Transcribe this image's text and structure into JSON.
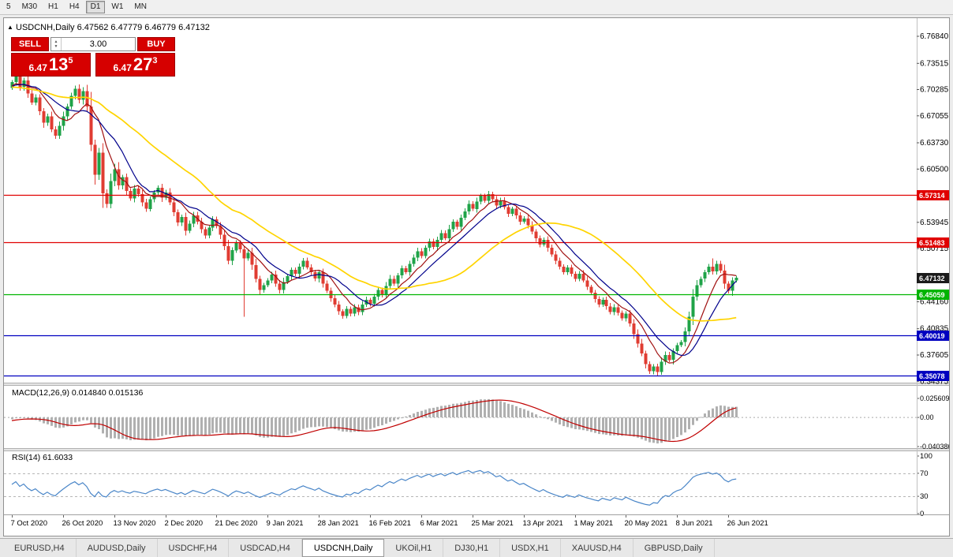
{
  "toolbar": {
    "timeframes": [
      "5",
      "M30",
      "H1",
      "H4",
      "D1",
      "W1",
      "MN"
    ],
    "active": "D1"
  },
  "header": {
    "symbol_line": "USDCNH,Daily 6.47562 6.47779 6.46779 6.47132"
  },
  "trade_panel": {
    "sell_label": "SELL",
    "buy_label": "BUY",
    "volume": "3.00",
    "sell_price": {
      "base": "6.47",
      "pips": "13",
      "sup": "5"
    },
    "buy_price": {
      "base": "6.47",
      "pips": "27",
      "sup": "3"
    },
    "panel_color": "#d60000"
  },
  "macd_panel": {
    "title": "MACD(12,26,9) 0.014840 0.015136",
    "axis_labels": [
      "0.025609",
      "0.00",
      "-0.040386"
    ]
  },
  "rsi_panel": {
    "title": "RSI(14) 61.6033",
    "axis_labels": [
      "100",
      "70",
      "30",
      "0"
    ],
    "levels": [
      70,
      30
    ]
  },
  "axis": {
    "price_ticks": [
      "6.76840",
      "6.73515",
      "6.70285",
      "6.67055",
      "6.63730",
      "6.60500",
      "6.57270",
      "6.53945",
      "6.50715",
      "6.47485",
      "6.44160",
      "6.40835",
      "6.37605",
      "6.34375"
    ],
    "current_price": 6.47132,
    "current_badge_color": "#1b1b1b"
  },
  "tabs": {
    "items": [
      "EURUSD,H4",
      "AUDUSD,Daily",
      "USDCHF,H4",
      "USDCAD,H4",
      "USDCNH,Daily",
      "UKOil,H1",
      "DJ30,H1",
      "USDX,H1",
      "XAUUSD,H4",
      "GBPUSD,Daily"
    ],
    "active_index": 4
  },
  "chart_data": {
    "type": "candlestick",
    "symbol": "USDCNH",
    "period": "Daily",
    "ohlc_display": {
      "open": 6.47562,
      "high": 6.47779,
      "low": 6.46779,
      "close": 6.47132
    },
    "axis_range": {
      "top": 6.783,
      "bottom": 6.344
    },
    "x_labels": [
      {
        "text": "7 Oct 2020",
        "index": 0
      },
      {
        "text": "26 Oct 2020",
        "index": 13
      },
      {
        "text": "13 Nov 2020",
        "index": 26
      },
      {
        "text": "2 Dec 2020",
        "index": 39
      },
      {
        "text": "21 Dec 2020",
        "index": 52
      },
      {
        "text": "9 Jan 2021",
        "index": 65
      },
      {
        "text": "28 Jan 2021",
        "index": 78
      },
      {
        "text": "16 Feb 2021",
        "index": 91
      },
      {
        "text": "6 Mar 2021",
        "index": 104
      },
      {
        "text": "25 Mar 2021",
        "index": 117
      },
      {
        "text": "13 Apr 2021",
        "index": 130
      },
      {
        "text": "1 May 2021",
        "index": 143
      },
      {
        "text": "20 May 2021",
        "index": 156
      },
      {
        "text": "8 Jun 2021",
        "index": 169
      },
      {
        "text": "26 Jun 2021",
        "index": 182
      }
    ],
    "history_closes": [
      6.758,
      6.752,
      6.746,
      6.75,
      6.742,
      6.736,
      6.74,
      6.732,
      6.726,
      6.73,
      6.722,
      6.716,
      6.72,
      6.712,
      6.706,
      6.71,
      6.702,
      6.708,
      6.7,
      6.694,
      6.698,
      6.704,
      6.696,
      6.69,
      6.686,
      6.692,
      6.684,
      6.69,
      6.696,
      6.702,
      6.708,
      6.714,
      6.706,
      6.7,
      6.712,
      6.718,
      6.71,
      6.704,
      6.698,
      6.705
    ],
    "closes": [
      6.712,
      6.7215,
      6.706,
      6.714,
      6.698,
      6.687,
      6.693,
      6.676,
      6.662,
      6.67,
      6.654,
      6.646,
      6.658,
      6.67,
      6.682,
      6.695,
      6.704,
      6.69,
      6.701,
      6.682,
      6.635,
      6.598,
      6.625,
      6.575,
      6.562,
      6.59,
      6.605,
      6.585,
      6.595,
      6.578,
      6.569,
      6.581,
      6.574,
      6.564,
      6.556,
      6.568,
      6.576,
      6.582,
      6.57,
      6.576,
      6.564,
      6.552,
      6.539,
      6.546,
      6.529,
      6.538,
      6.548,
      6.54,
      6.531,
      6.523,
      6.533,
      6.543,
      6.535,
      6.524,
      6.51,
      6.492,
      6.505,
      6.514,
      6.506,
      6.495,
      6.502,
      6.487,
      6.47,
      6.456,
      6.462,
      6.468,
      6.475,
      6.464,
      6.456,
      6.466,
      6.473,
      6.481,
      6.476,
      6.485,
      6.492,
      6.484,
      6.478,
      6.47,
      6.478,
      6.464,
      6.455,
      6.446,
      6.438,
      6.43,
      6.424,
      6.433,
      6.427,
      6.435,
      6.429,
      6.438,
      6.444,
      6.439,
      6.448,
      6.456,
      6.45,
      6.461,
      6.47,
      6.464,
      6.474,
      6.483,
      6.478,
      6.488,
      6.496,
      6.504,
      6.498,
      6.508,
      6.516,
      6.509,
      6.518,
      6.526,
      6.52,
      6.531,
      6.54,
      6.534,
      6.545,
      6.553,
      6.562,
      6.556,
      6.565,
      6.572,
      6.566,
      6.574,
      6.568,
      6.56,
      6.566,
      6.558,
      6.55,
      6.556,
      6.548,
      6.54,
      6.544,
      6.536,
      6.528,
      6.52,
      6.512,
      6.518,
      6.508,
      6.5,
      6.492,
      6.485,
      6.478,
      6.484,
      6.476,
      6.47,
      6.476,
      6.468,
      6.46,
      6.453,
      6.445,
      6.438,
      6.444,
      6.436,
      6.429,
      6.435,
      6.428,
      6.421,
      6.427,
      6.415,
      6.402,
      6.39,
      6.378,
      6.365,
      6.356,
      6.362,
      6.355,
      6.368,
      6.376,
      6.37,
      6.381,
      6.388,
      6.392,
      6.405,
      6.423,
      6.448,
      6.462,
      6.47,
      6.478,
      6.485,
      6.479,
      6.488,
      6.48,
      6.464,
      6.455,
      6.468,
      6.47132
    ],
    "wick_overrides": {
      "1": {
        "high": 6.728
      },
      "59": {
        "low": 6.423
      },
      "121": {
        "high": 6.5782
      },
      "164": {
        "low": 6.3509
      },
      "178": {
        "high": 6.4952
      }
    },
    "hlines": [
      {
        "price": 6.57314,
        "color": "#e00000"
      },
      {
        "price": 6.51483,
        "color": "#e00000"
      },
      {
        "price": 6.45059,
        "color": "#00b400"
      },
      {
        "price": 6.40019,
        "color": "#0000c0"
      },
      {
        "price": 6.35078,
        "color": "#0000c0"
      }
    ],
    "moving_averages": [
      {
        "period": 8,
        "color": "#a01010",
        "type": "sma"
      },
      {
        "period": 13,
        "color": "#00008b",
        "type": "sma"
      },
      {
        "period": 34,
        "color": "#ffd400",
        "type": "sma"
      }
    ],
    "macd": {
      "fast": 12,
      "slow": 26,
      "signal": 9,
      "value": 0.01484,
      "signal_value": 0.015136,
      "bar_color": "#b0b0b0",
      "line_color": "#c00000"
    },
    "rsi": {
      "period": 14,
      "value": 61.6033,
      "line_color": "#4a86c8"
    },
    "candle_colors": {
      "up": "#1fa348",
      "down": "#e03c32"
    }
  }
}
